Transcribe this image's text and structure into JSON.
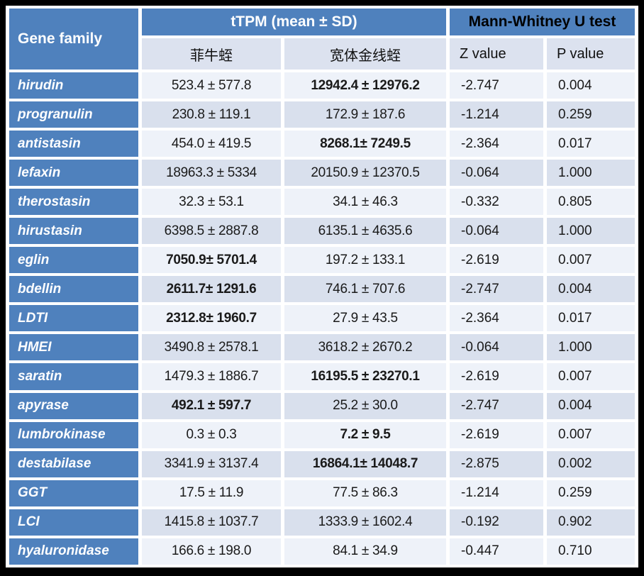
{
  "header": {
    "gene_family": "Gene family",
    "ttpm": "tTPM (mean ± SD)",
    "mwu": "Mann-Whitney U test",
    "species_hm": "菲牛蛭",
    "species_wp": "宽体金线蛭",
    "z_label": "Z value",
    "p_label": "P value"
  },
  "colors": {
    "header_blue": "#4f81bd",
    "subheader_bg": "#dce2ef",
    "row_light": "#eef2f9",
    "row_dark": "#d9e0ed",
    "highlight_red": "#ff0000",
    "highlight_blue": "#0070c0",
    "frame_black": "#000000"
  },
  "rows": [
    {
      "gene": "hirudin",
      "hm": "523.4 ± 577.8",
      "wp": "12942.4 ± 12976.2",
      "z": "-2.747",
      "p": "0.004",
      "hm_hl": "",
      "wp_hl": "red"
    },
    {
      "gene": "progranulin",
      "hm": "230.8 ± 119.1",
      "wp": "172.9 ± 187.6",
      "z": "-1.214",
      "p": "0.259",
      "hm_hl": "",
      "wp_hl": ""
    },
    {
      "gene": "antistasin",
      "hm": "454.0 ± 419.5",
      "wp": "8268.1± 7249.5",
      "z": "-2.364",
      "p": "0.017",
      "hm_hl": "",
      "wp_hl": "red"
    },
    {
      "gene": "lefaxin",
      "hm": "18963.3 ± 5334",
      "wp": "20150.9 ± 12370.5",
      "z": "-0.064",
      "p": "1.000",
      "hm_hl": "",
      "wp_hl": ""
    },
    {
      "gene": "therostasin",
      "hm": "32.3 ± 53.1",
      "wp": "34.1 ± 46.3",
      "z": "-0.332",
      "p": "0.805",
      "hm_hl": "",
      "wp_hl": ""
    },
    {
      "gene": "hirustasin",
      "hm": "6398.5 ± 2887.8",
      "wp": "6135.1 ± 4635.6",
      "z": "-0.064",
      "p": "1.000",
      "hm_hl": "",
      "wp_hl": ""
    },
    {
      "gene": "eglin",
      "hm": "7050.9± 5701.4",
      "wp": "197.2 ± 133.1",
      "z": "-2.619",
      "p": "0.007",
      "hm_hl": "blue",
      "wp_hl": ""
    },
    {
      "gene": "bdellin",
      "hm": "2611.7± 1291.6",
      "wp": "746.1 ± 707.6",
      "z": "-2.747",
      "p": "0.004",
      "hm_hl": "blue",
      "wp_hl": ""
    },
    {
      "gene": "LDTI",
      "hm": "2312.8± 1960.7",
      "wp": "27.9 ± 43.5",
      "z": "-2.364",
      "p": "0.017",
      "hm_hl": "blue",
      "wp_hl": ""
    },
    {
      "gene": "HMEI",
      "hm": "3490.8 ± 2578.1",
      "wp": "3618.2 ± 2670.2",
      "z": "-0.064",
      "p": "1.000",
      "hm_hl": "",
      "wp_hl": ""
    },
    {
      "gene": "saratin",
      "hm": "1479.3 ± 1886.7",
      "wp": "16195.5 ± 23270.1",
      "z": "-2.619",
      "p": "0.007",
      "hm_hl": "",
      "wp_hl": "red"
    },
    {
      "gene": "apyrase",
      "hm": "492.1 ± 597.7",
      "wp": "25.2 ± 30.0",
      "z": "-2.747",
      "p": "0.004",
      "hm_hl": "blue",
      "wp_hl": ""
    },
    {
      "gene": "lumbrokinase",
      "hm": "0.3 ± 0.3",
      "wp": "7.2 ± 9.5",
      "z": "-2.619",
      "p": "0.007",
      "hm_hl": "",
      "wp_hl": "red"
    },
    {
      "gene": "destabilase",
      "hm": "3341.9 ± 3137.4",
      "wp": "16864.1± 14048.7",
      "z": "-2.875",
      "p": "0.002",
      "hm_hl": "",
      "wp_hl": "red"
    },
    {
      "gene": "GGT",
      "hm": "17.5 ± 11.9",
      "wp": "77.5 ± 86.3",
      "z": "-1.214",
      "p": "0.259",
      "hm_hl": "",
      "wp_hl": ""
    },
    {
      "gene": "LCI",
      "hm": "1415.8 ± 1037.7",
      "wp": "1333.9 ± 1602.4",
      "z": "-0.192",
      "p": "0.902",
      "hm_hl": "",
      "wp_hl": ""
    },
    {
      "gene": "hyaluronidase",
      "hm": "166.6 ± 198.0",
      "wp": "84.1 ± 34.9",
      "z": "-0.447",
      "p": "0.710",
      "hm_hl": "",
      "wp_hl": ""
    }
  ]
}
